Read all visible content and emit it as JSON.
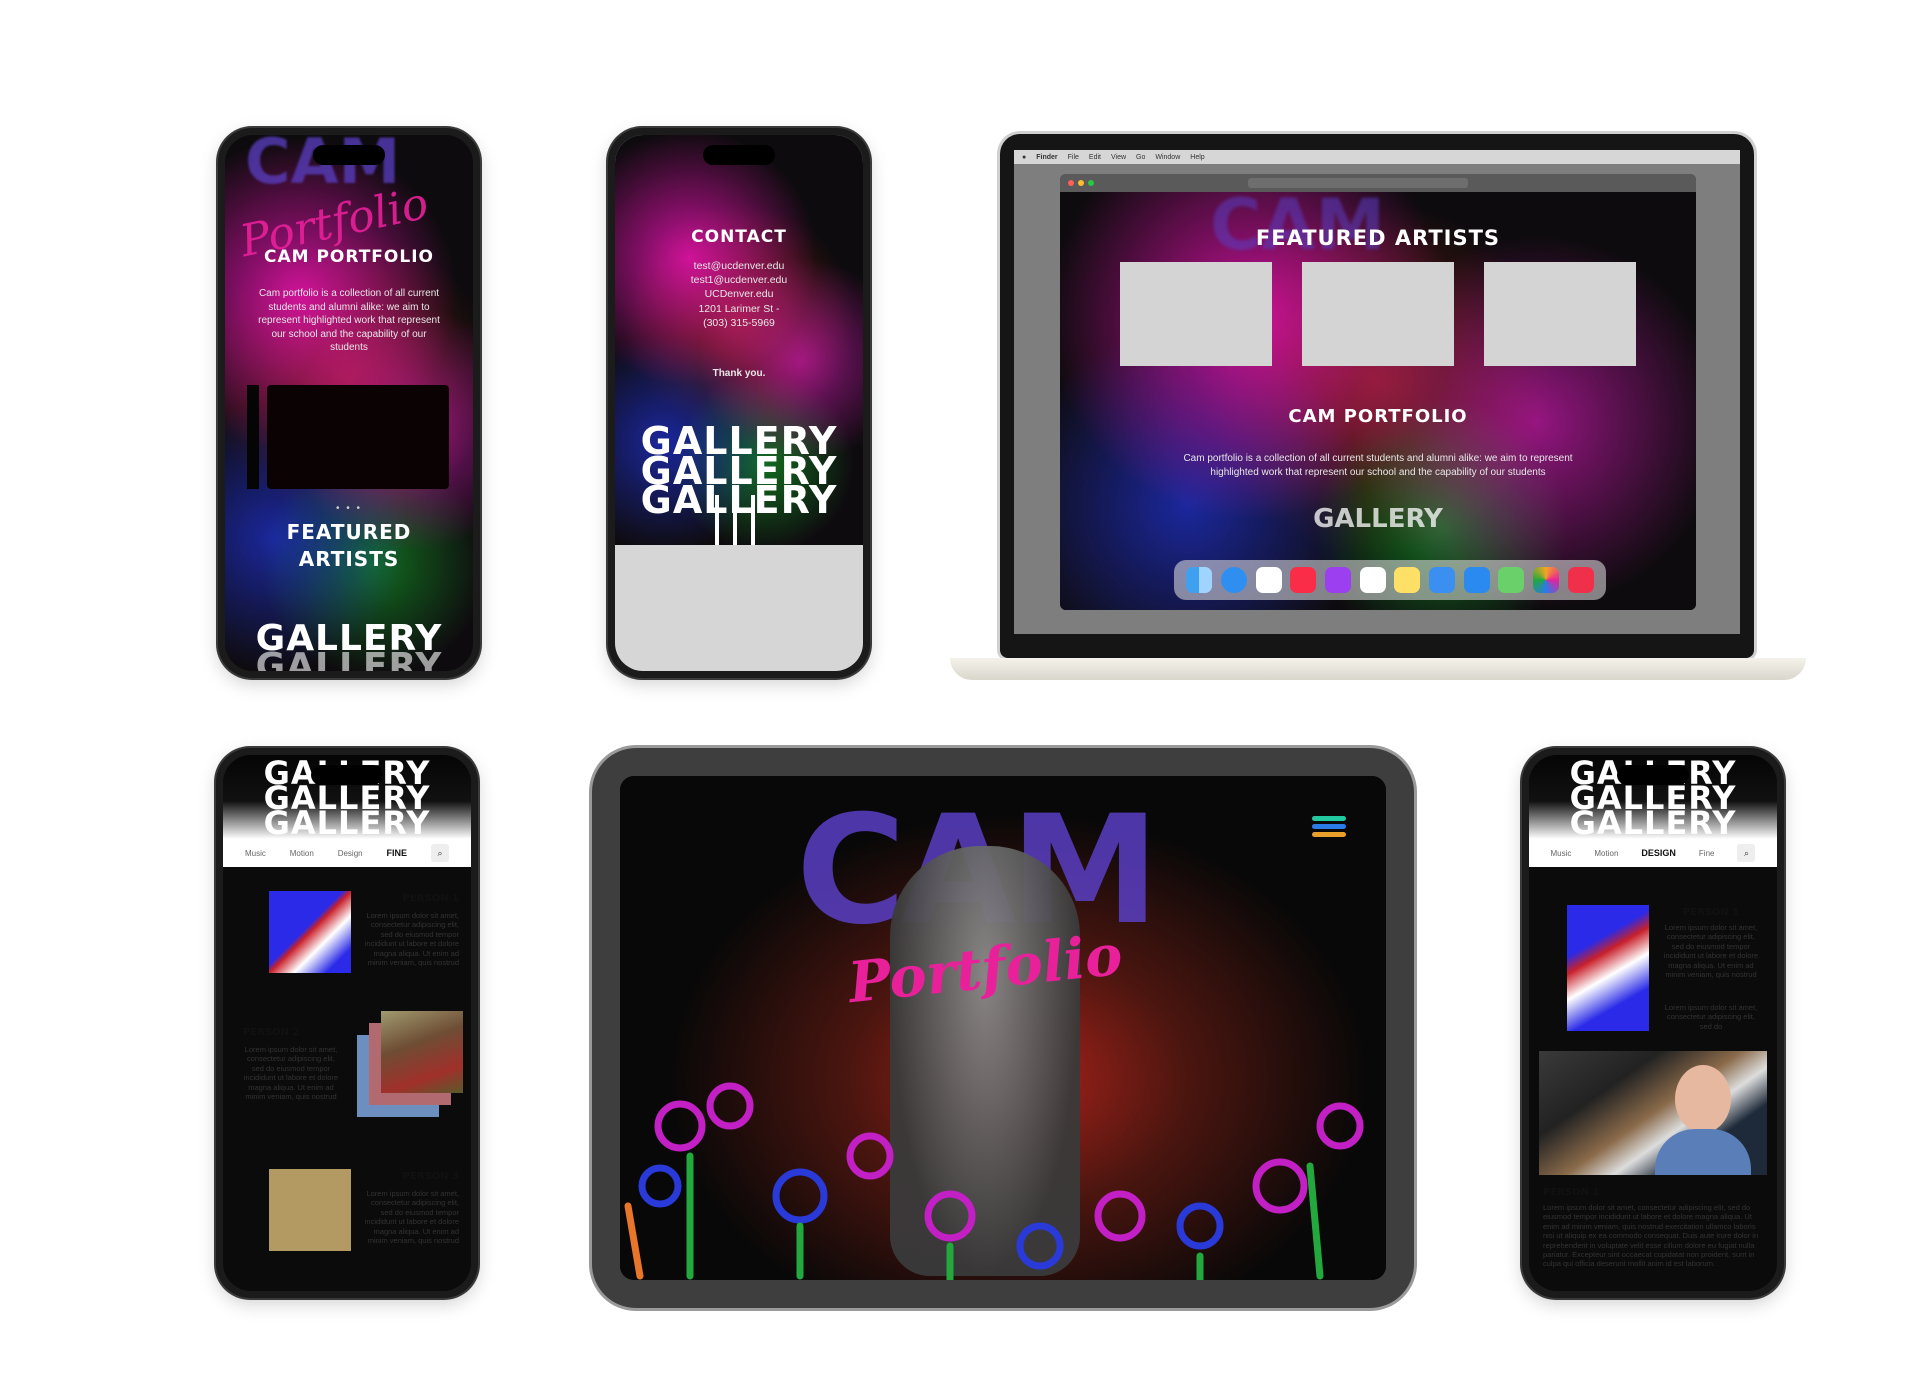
{
  "phone1": {
    "logo_cam": "CAM",
    "logo_portfolio": "Portfolio",
    "title": "CAM PORTFOLIO",
    "description": "Cam portfolio is a collection of all current students and alumni alike: we aim to represent highlighted work that represent our school and the capability of our students",
    "featured": "FEATURED ARTISTS",
    "gallery": "GALLERY"
  },
  "phone2": {
    "contact_title": "CONTACT",
    "contact_lines": [
      "test@ucdenver.edu",
      "test1@ucdenver.edu",
      "UCDenver.edu",
      "1201 Larimer St -",
      "(303) 315-5969"
    ],
    "thanks": "Thank you.",
    "gallery": "GALLERY"
  },
  "laptop": {
    "menubar": [
      "Finder",
      "File",
      "Edit",
      "View",
      "Go",
      "Window",
      "Help"
    ],
    "featured": "FEATURED ARTISTS",
    "title": "CAM PORTFOLIO",
    "description": "Cam portfolio is a collection of all current students and alumni alike: we aim to represent highlighted work that represent our school and the capability of our students",
    "gallery": "GALLERY",
    "logo_cam": "CAM"
  },
  "phone3": {
    "gallery": "GALLERY",
    "nav": [
      "Music",
      "Motion",
      "Design",
      "FINE"
    ],
    "active_tab": "FINE",
    "persons": [
      {
        "name": "PERSON 1",
        "text": "Lorem ipsum dolor sit amet, consectetur adipiscing elit, sed do eiusmod tempor incididunt ut labore et dolore magna aliqua. Ut enim ad minim veniam, quis nostrud"
      },
      {
        "name": "PERSON 2",
        "text": "Lorem ipsum dolor sit amet, consectetur adipiscing elit, sed do eiusmod tempor incididunt ut labore et dolore magna aliqua. Ut enim ad minim veniam, quis nostrud"
      },
      {
        "name": "PERSON 3",
        "text": "Lorem ipsum dolor sit amet, consectetur adipiscing elit, sed do eiusmod tempor incididunt ut labore et dolore magna aliqua. Ut enim ad minim veniam, quis nostrud"
      }
    ]
  },
  "tablet": {
    "logo_cam": "CAM",
    "logo_portfolio": "Portfolio"
  },
  "phone4": {
    "gallery": "GALLERY",
    "nav": [
      "Music",
      "Motion",
      "DESIGN",
      "Fine"
    ],
    "active_tab": "DESIGN",
    "person_name": "PERSON 1",
    "person_text_short": "Lorem ipsum dolor sit amet, consectetur adipiscing elit, sed do eiusmod tempor incididunt ut labore et dolore magna aliqua. Ut enim ad minim veniam, quis nostrud",
    "person_text_short2": "Lorem ipsum dolor sit amet, consectetur adipiscing elit, sed do",
    "video_label": "Video text",
    "person_name2": "PERSON 1",
    "person_text_long": "Lorem ipsum dolor sit amet, consectetur adipiscing elit, sed do eiusmod tempor incididunt ut labore et dolore magna aliqua. Ut enim ad minim veniam, quis nostrud exercitation ullamco laboris nisi ut aliquip ex ea commodo consequat. Duis aute irure dolor in reprehenderit in voluptate velit esse cillum dolore eu fugiat nulla pariatur. Excepteur sint occaecat cupidatat non proident, sunt in culpa qui officia deserunt mollit anim id est laborum."
  },
  "colors": {
    "pink": "#e8219a",
    "purple": "#5a3fc4",
    "blue": "#2a3ad8",
    "green": "#22a83c",
    "orange": "#e8762a",
    "menu_icon": [
      "#22c9a0",
      "#2a7be8",
      "#e8a02a"
    ]
  }
}
